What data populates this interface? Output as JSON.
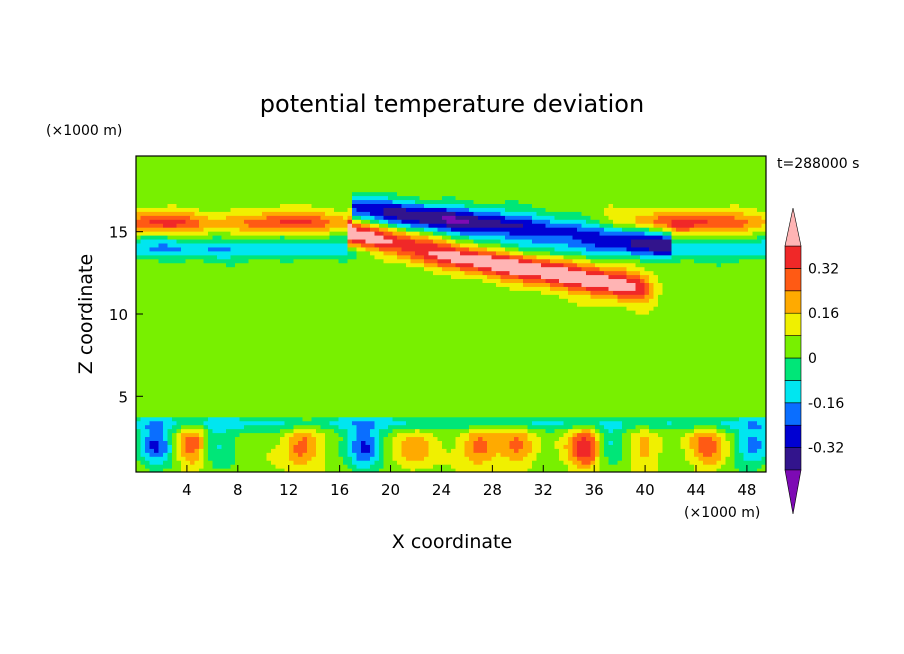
{
  "chart_data": {
    "type": "heatmap",
    "title": "potential temperature deviation",
    "xlabel": "X coordinate",
    "ylabel": "Z coordinate",
    "x_unit": "(×1000 m)",
    "y_unit": "(×1000 m)",
    "time_label": "t=288000 s",
    "xlim": [
      0,
      49.5
    ],
    "ylim": [
      0.4,
      19.6
    ],
    "x_ticks": [
      4,
      8,
      12,
      16,
      20,
      24,
      28,
      32,
      36,
      40,
      44,
      48
    ],
    "y_ticks": [
      5,
      10,
      15
    ],
    "colorbar": {
      "levels": [
        -0.4,
        -0.32,
        -0.24,
        -0.16,
        -0.08,
        0,
        0.08,
        0.16,
        0.24,
        0.32,
        0.4
      ],
      "labeled_ticks": [
        0.32,
        0.16,
        0,
        -0.16,
        -0.32
      ],
      "colors": [
        "#7d0ab4",
        "#32148c",
        "#0000d2",
        "#0a6eff",
        "#00e6f0",
        "#00e678",
        "#78f000",
        "#f0f000",
        "#ffaa00",
        "#ff5a14",
        "#f02828",
        "#ffb4b4"
      ]
    },
    "features": [
      {
        "name": "warm layer",
        "x_range": [
          18,
          40
        ],
        "z_range": [
          11.5,
          14.8
        ],
        "value": 0.4
      },
      {
        "name": "cold layer",
        "x_range": [
          17.5,
          41
        ],
        "z_range": [
          14.5,
          17
        ],
        "value": -0.35
      },
      {
        "name": "warm left band",
        "x_range": [
          0,
          17
        ],
        "z_range": [
          14.8,
          16.5
        ],
        "value": 0.3
      },
      {
        "name": "warm right band",
        "x_range": [
          37,
          49.5
        ],
        "z_range": [
          14.8,
          16.5
        ],
        "value": 0.3
      },
      {
        "name": "cool band",
        "x_range": [
          0,
          49.5
        ],
        "z_range": [
          13,
          14.5
        ],
        "value": -0.12
      }
    ]
  }
}
